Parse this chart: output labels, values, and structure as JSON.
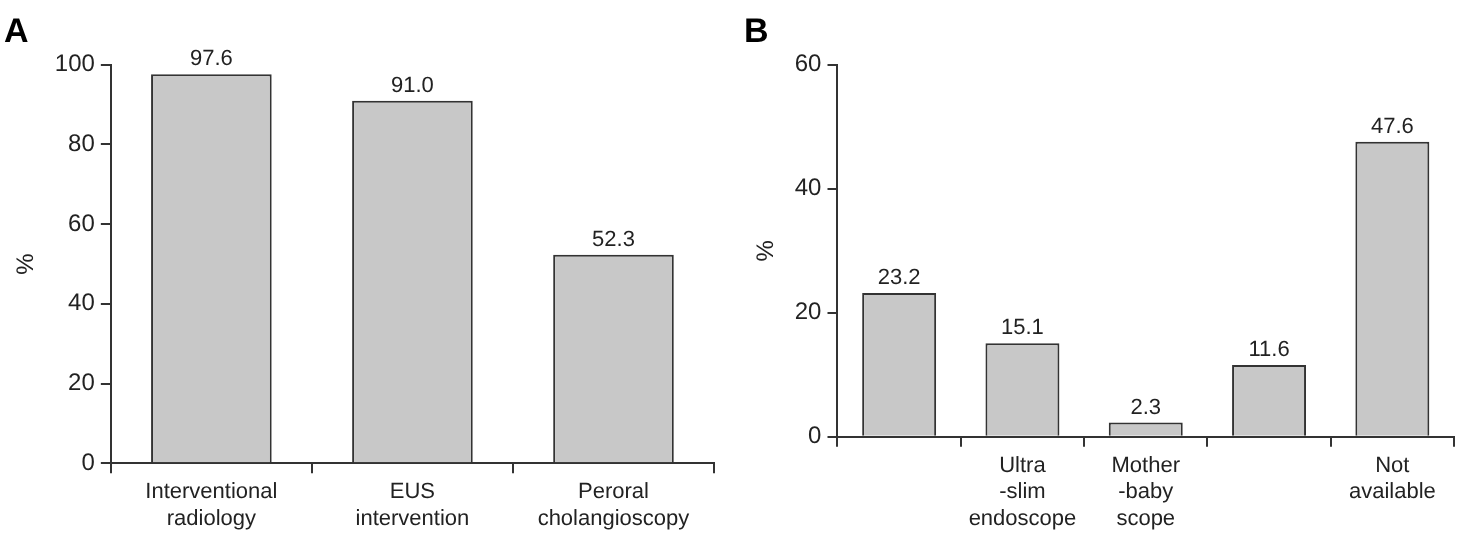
{
  "chart_data": [
    {
      "type": "bar",
      "title": "A",
      "ylabel": "%",
      "categories": [
        "Interventional\nradiology",
        "EUS\nintervention",
        "Peroral\ncholangioscopy"
      ],
      "values": [
        97.6,
        91.0,
        52.3
      ],
      "value_labels": [
        "97.6",
        "91.0",
        "52.3"
      ],
      "color": "#c8c8c8",
      "ylim": [
        0,
        100
      ],
      "yticks": [
        0,
        20,
        40,
        60,
        80,
        100
      ],
      "grid": false,
      "legend": false
    },
    {
      "type": "bar",
      "title": "B",
      "ylabel": "%",
      "categories": [
        null,
        "Ultra\n-slim\nendoscope",
        "Mother\n-baby\nscope",
        null,
        "Not\navailable"
      ],
      "values": [
        23.2,
        15.1,
        2.3,
        11.6,
        47.6
      ],
      "value_labels": [
        "23.2",
        "15.1",
        "2.3",
        "11.6",
        "47.6"
      ],
      "color": "#c8c8c8",
      "ylim": [
        0,
        60
      ],
      "yticks": [
        0,
        20,
        40,
        60
      ],
      "grid": false,
      "legend": false
    }
  ]
}
